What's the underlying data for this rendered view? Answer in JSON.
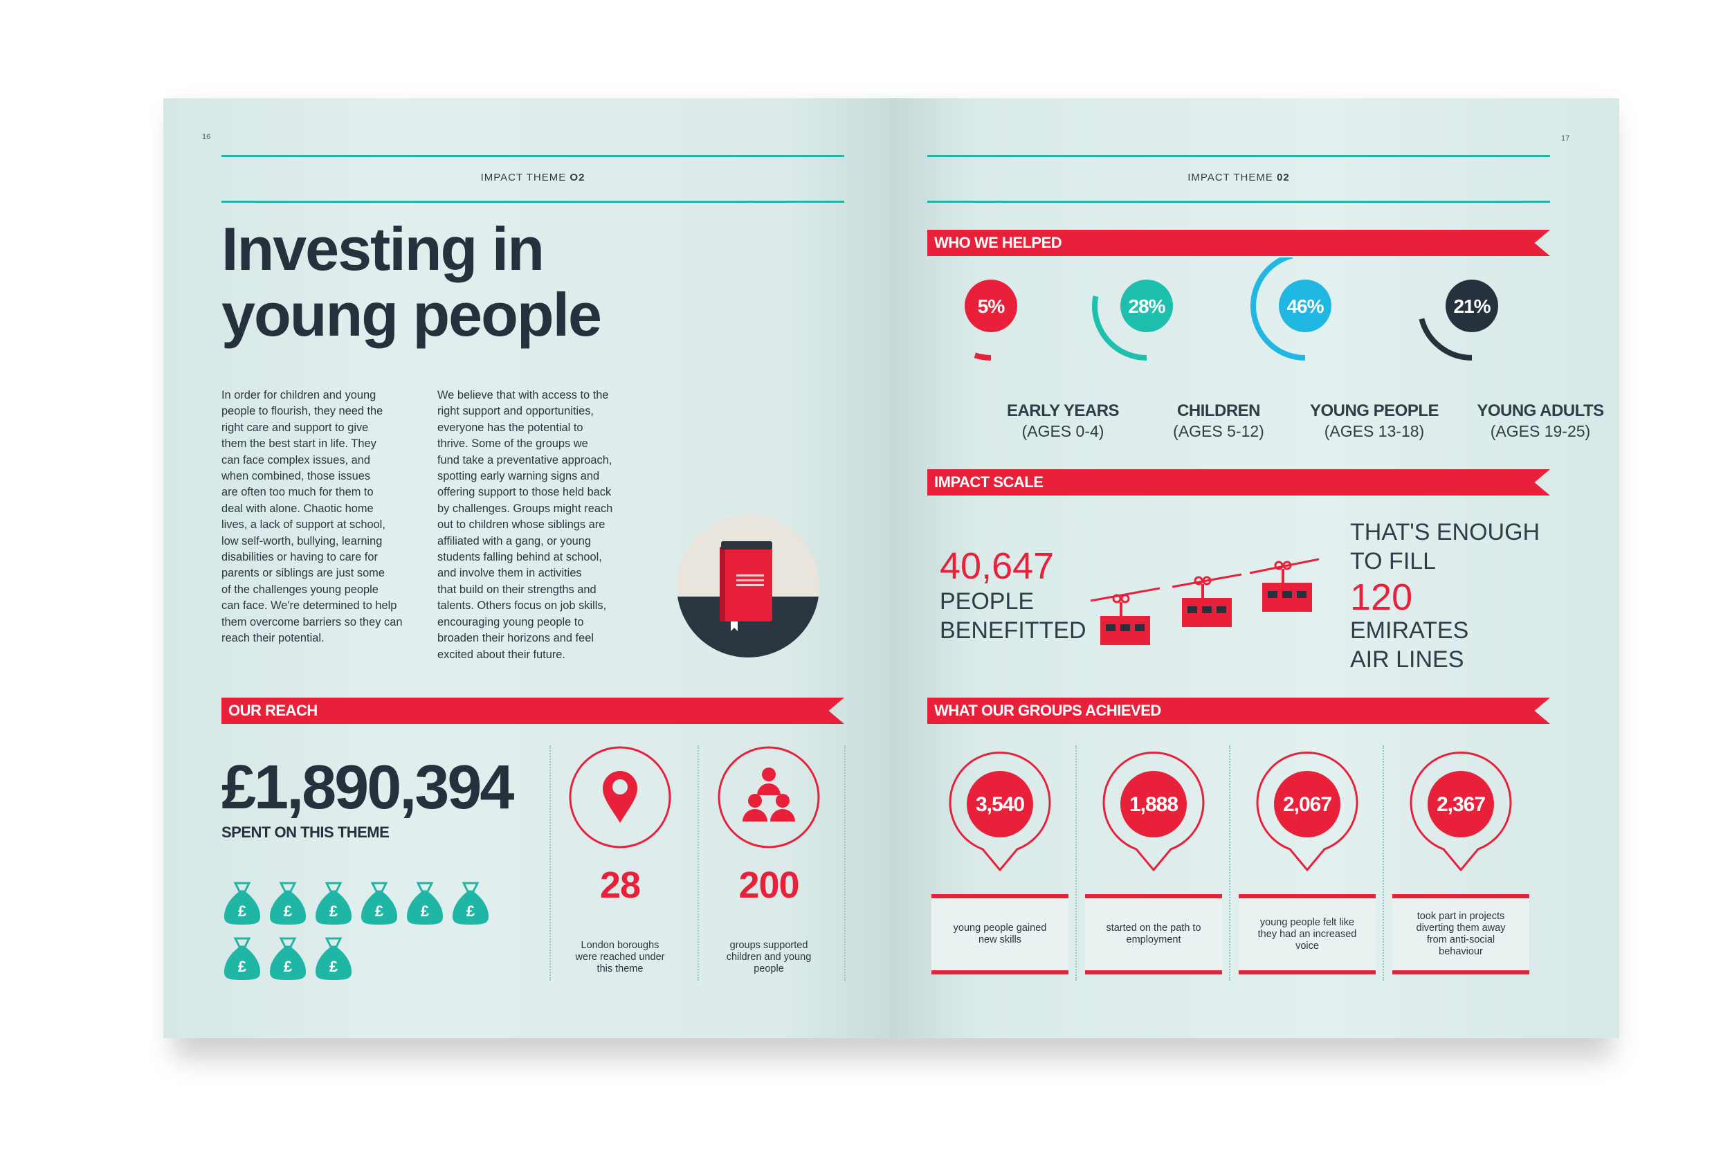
{
  "left_page": {
    "folio": "16",
    "theme_label": "IMPACT THEME",
    "theme_number": "O2",
    "title_line1": "Investing in",
    "title_line2": "young people",
    "body_col1": [
      "In order for children and young",
      "people to flourish, they need the",
      "right care and support to give",
      "them the best start in life. They",
      "can face complex issues, and",
      "when combined, those issues",
      "are often too much for them to",
      "deal with alone. Chaotic home",
      "lives, a lack of support at school,",
      "low self-worth, bullying, learning",
      "disabilities or having to care for",
      "parents or siblings are just some",
      "of the challenges young people",
      "can face. We're determined to help",
      "them overcome barriers so they can",
      "reach their potential."
    ],
    "body_col2": [
      "We believe that with access to the",
      "right support and opportunities,",
      "everyone has the potential to",
      "thrive. Some of the groups we",
      "fund take a preventative approach,",
      "spotting early warning signs and",
      "offering support to those held back",
      "by challenges. Groups might reach",
      "out to children whose siblings are",
      "affiliated with a gang, or young",
      "students falling behind at school,",
      "and involve them in activities",
      "that build on their strengths and",
      "talents. Others focus on job skills,",
      "encouraging young people to",
      "broaden their horizons and feel",
      "excited about their future."
    ],
    "reach": {
      "heading": "OUR REACH",
      "amount": "£1,890,394",
      "amount_caption": "SPENT ON THIS THEME",
      "bag_symbol": "£",
      "bag_count": 9,
      "stats": [
        {
          "number": "28",
          "caption_lines": [
            "London boroughs",
            "were reached under",
            "this theme"
          ],
          "icon": "location-pin-icon"
        },
        {
          "number": "200",
          "caption_lines": [
            "groups supported",
            "children and young",
            "people"
          ],
          "icon": "group-people-icon"
        }
      ]
    }
  },
  "right_page": {
    "folio": "17",
    "theme_label": "IMPACT THEME",
    "theme_number": "02",
    "who_heading": "WHO WE HELPED",
    "age_groups": [
      {
        "percent_label": "5%",
        "percent": 5,
        "name": "EARLY YEARS",
        "ages": "(AGES 0-4)",
        "color": "#e8203a"
      },
      {
        "percent_label": "28%",
        "percent": 28,
        "name": "CHILDREN",
        "ages": "(AGES 5-12)",
        "color": "#1fbfae"
      },
      {
        "percent_label": "46%",
        "percent": 46,
        "name": "YOUNG PEOPLE",
        "ages": "(AGES 13-18)",
        "color": "#21b7e3"
      },
      {
        "percent_label": "21%",
        "percent": 21,
        "name": "YOUNG ADULTS",
        "ages": "(AGES 19-25)",
        "color": "#25323e"
      }
    ],
    "impact_heading": "IMPACT SCALE",
    "impact": {
      "number": "40,647",
      "label_line1": "PEOPLE",
      "label_line2": "BENEFITTED",
      "fill_line1": "THAT'S ENOUGH",
      "fill_line2": "TO FILL",
      "fill_number": "120",
      "fill_line3": "EMIRATES",
      "fill_line4": "AIR LINES"
    },
    "achieved_heading": "WHAT OUR GROUPS ACHIEVED",
    "achievements": [
      {
        "number": "3,540",
        "caption_lines": [
          "young people gained",
          "new skills"
        ]
      },
      {
        "number": "1,888",
        "caption_lines": [
          "started on the path to",
          "employment"
        ]
      },
      {
        "number": "2,067",
        "caption_lines": [
          "young people felt like",
          "they had an increased",
          "voice"
        ]
      },
      {
        "number": "2,367",
        "caption_lines": [
          "took part in projects",
          "diverting them away",
          "from anti-social",
          "behaviour"
        ]
      }
    ]
  },
  "colors": {
    "red": "#e8203a",
    "teal": "#1fb6a6",
    "navy": "#25323e",
    "cyan": "#21b7e3"
  }
}
